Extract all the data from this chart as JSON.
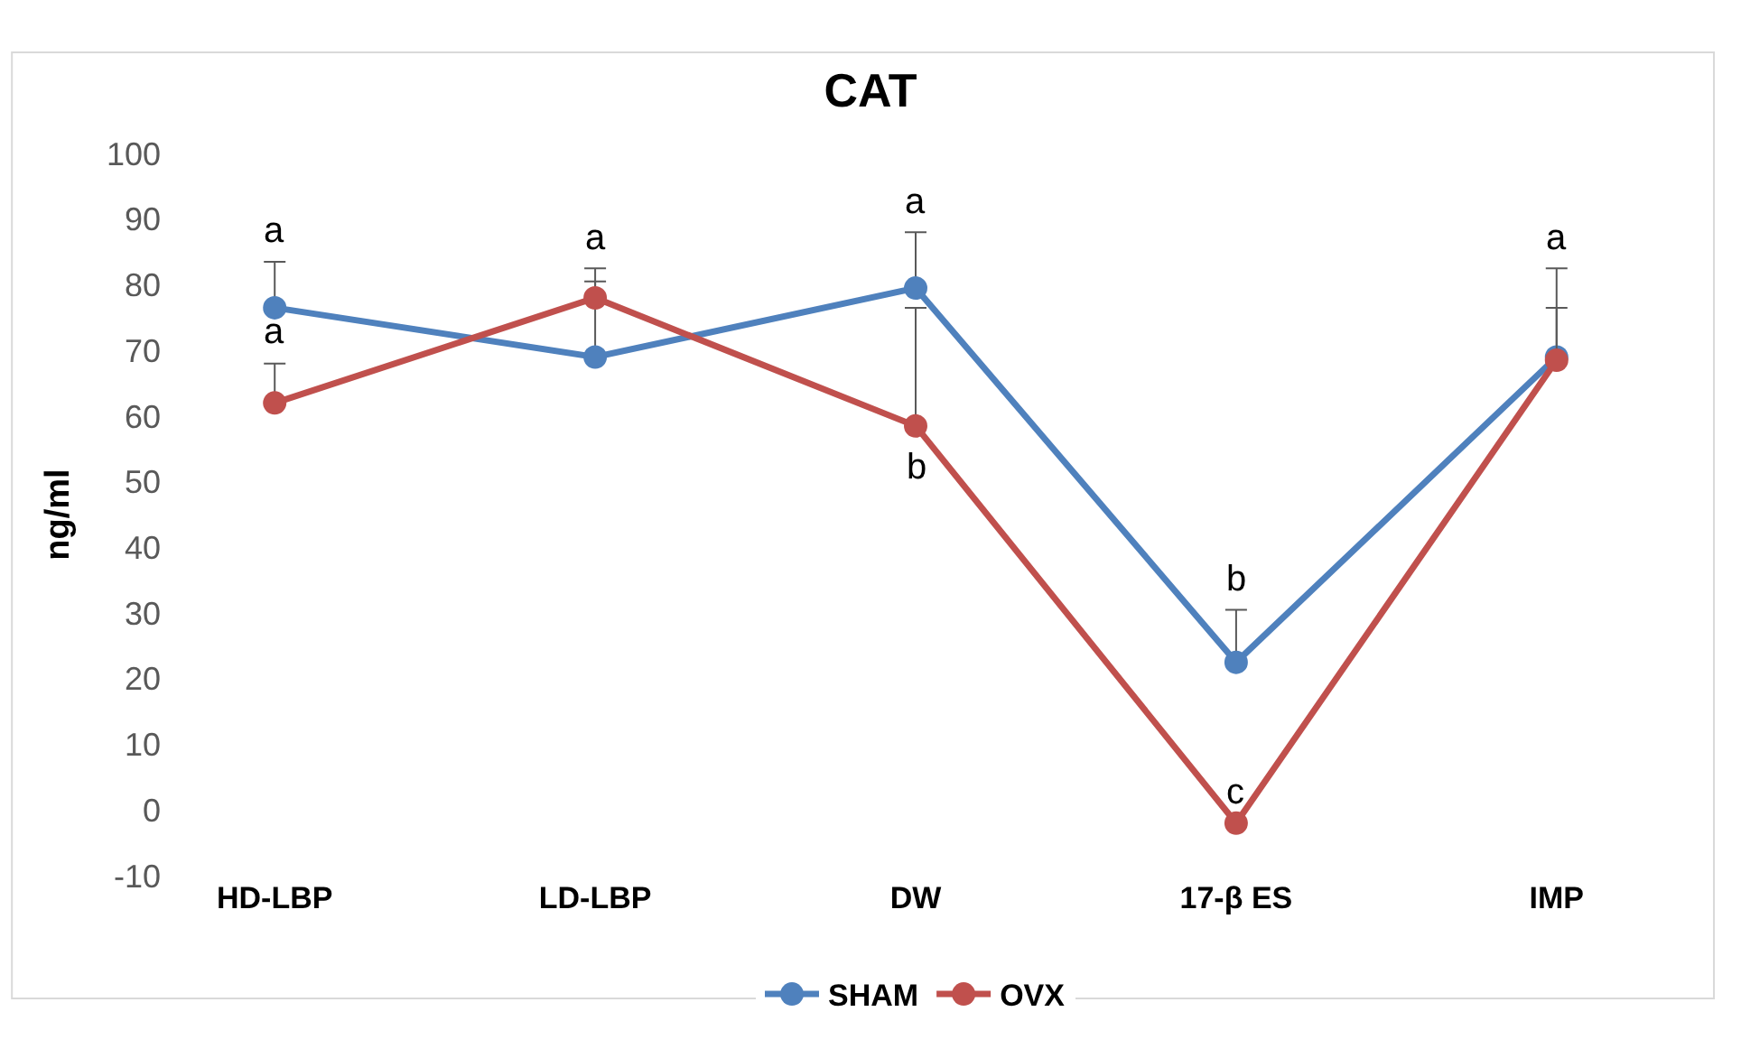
{
  "chart_data": {
    "type": "line",
    "title": "CAT",
    "ylabel": "ng/ml",
    "categories": [
      "HD-LBP",
      "LD-LBP",
      "DW",
      "17-β ES",
      "IMP"
    ],
    "series": [
      {
        "name": "SHAM",
        "color": "#4f81bd",
        "values": [
          76.5,
          69,
          79.5,
          22.5,
          69
        ],
        "errors": [
          [
            76.5,
            83.5
          ],
          [
            69,
            80.5
          ],
          [
            79.5,
            88
          ],
          [
            22.5,
            30.5
          ],
          [
            69,
            82.5
          ]
        ],
        "value_labels": [
          "a",
          null,
          "a",
          "b",
          "a"
        ]
      },
      {
        "name": "OVX",
        "color": "#c0504d",
        "values": [
          62,
          78,
          58.5,
          -2,
          68.5
        ],
        "errors": [
          [
            62,
            68
          ],
          [
            78,
            82.5
          ],
          [
            58.5,
            76.5
          ],
          null,
          [
            68.5,
            76.5
          ]
        ],
        "value_labels": [
          "a",
          "a",
          "b",
          "c",
          null
        ]
      }
    ],
    "ylim": [
      -10,
      100
    ],
    "yticks": [
      -10,
      0,
      10,
      20,
      30,
      40,
      50,
      60,
      70,
      80,
      90,
      100
    ],
    "grid": false,
    "legend": "bottom",
    "marker": "circle",
    "line_style": "solid"
  }
}
